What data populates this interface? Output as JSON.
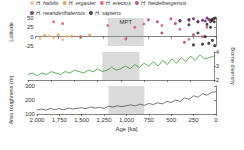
{
  "chart_data": [
    {
      "type": "scatter",
      "ylabel": "Latitude",
      "legend": "top",
      "grid": false,
      "tick_labels": "y",
      "xlim": [
        2000,
        0
      ],
      "xticks": [
        2000,
        1750,
        1500,
        1250,
        1000,
        750,
        500,
        250,
        0
      ],
      "ylim": [
        -25,
        50
      ],
      "yticks": [
        -25,
        0,
        25,
        50
      ],
      "band": [
        1200,
        800
      ],
      "band_label": "MPT",
      "series": [
        {
          "name": "H. habilis",
          "color": "#f2b880",
          "values": [
            [
              1950,
              -5
            ],
            [
              1850,
              2
            ],
            [
              1800,
              -3
            ],
            [
              1700,
              -8
            ],
            [
              1650,
              1
            ]
          ]
        },
        {
          "name": "H. ergaster",
          "color": "#e8923a",
          "values": [
            [
              1900,
              3
            ],
            [
              1750,
              5
            ],
            [
              1600,
              1
            ],
            [
              1500,
              -2
            ],
            [
              1400,
              4
            ]
          ]
        },
        {
          "name": "H. erectus",
          "color": "#d9536f",
          "values": [
            [
              1800,
              40
            ],
            [
              1700,
              35
            ],
            [
              1500,
              0
            ],
            [
              1200,
              30
            ],
            [
              1000,
              -6
            ],
            [
              900,
              25
            ],
            [
              800,
              34
            ],
            [
              600,
              30
            ],
            [
              400,
              20
            ],
            [
              300,
              -7
            ],
            [
              150,
              0
            ],
            [
              100,
              25
            ]
          ]
        },
        {
          "name": "H. heidelbergensis",
          "color": "#b0306e",
          "values": [
            [
              750,
              45
            ],
            [
              650,
              40
            ],
            [
              600,
              10
            ],
            [
              500,
              48
            ],
            [
              450,
              35
            ],
            [
              400,
              42
            ],
            [
              350,
              -15
            ],
            [
              300,
              45
            ],
            [
              250,
              5
            ],
            [
              200,
              40
            ]
          ]
        },
        {
          "name": "H. neanderthalensis",
          "color": "#5b1a5e",
          "values": [
            [
              400,
              43
            ],
            [
              300,
              45
            ],
            [
              250,
              48
            ],
            [
              200,
              40
            ],
            [
              150,
              44
            ],
            [
              120,
              42
            ],
            [
              100,
              50
            ],
            [
              80,
              46
            ],
            [
              60,
              40
            ],
            [
              45,
              44
            ]
          ]
        },
        {
          "name": "H. sapiens",
          "color": "#1a1a1a",
          "values": [
            [
              300,
              32
            ],
            [
              250,
              -22
            ],
            [
              200,
              10
            ],
            [
              150,
              -20
            ],
            [
              120,
              0
            ],
            [
              100,
              33
            ],
            [
              80,
              -18
            ],
            [
              60,
              25
            ],
            [
              50,
              45
            ],
            [
              40,
              -10
            ],
            [
              30,
              48
            ],
            [
              20,
              40
            ],
            [
              15,
              -24
            ],
            [
              10,
              50
            ]
          ]
        }
      ]
    },
    {
      "type": "line",
      "ylabel": "Biome diversity",
      "axis": "y2",
      "grid": false,
      "tick_labels": "y",
      "xlim": [
        2000,
        0
      ],
      "xticks": [
        2000,
        1750,
        1500,
        1250,
        1000,
        750,
        500,
        250,
        0
      ],
      "y2lim": [
        2,
        4
      ],
      "y2ticks": [
        2,
        3,
        4
      ],
      "band": [
        1200,
        800
      ],
      "x": [
        2000,
        1950,
        1900,
        1850,
        1800,
        1750,
        1700,
        1650,
        1600,
        1550,
        1500,
        1450,
        1400,
        1350,
        1300,
        1250,
        1200,
        1150,
        1100,
        1050,
        1000,
        950,
        900,
        850,
        800,
        750,
        700,
        650,
        600,
        550,
        500,
        450,
        400,
        350,
        300,
        250,
        200,
        150,
        100,
        50,
        0
      ],
      "series": [
        {
          "color": "#3a9a3a",
          "values": [
            2.4,
            2.5,
            2.3,
            2.5,
            2.4,
            2.6,
            2.5,
            2.4,
            2.6,
            2.5,
            2.7,
            2.6,
            2.5,
            2.7,
            2.6,
            2.8,
            2.6,
            2.7,
            2.9,
            2.7,
            2.8,
            3.0,
            2.8,
            3.1,
            2.9,
            3.2,
            3.0,
            3.3,
            3.0,
            3.4,
            3.1,
            3.5,
            3.2,
            3.6,
            3.3,
            3.7,
            3.4,
            3.8,
            3.5,
            3.6,
            3.7
          ]
        }
      ]
    },
    {
      "type": "line",
      "ylabel": "Area roughness (m)",
      "xlabel": "Age [ka]",
      "grid": false,
      "xlim": [
        2000,
        0
      ],
      "xticks": [
        2000,
        1750,
        1500,
        1250,
        1000,
        750,
        500,
        250,
        0
      ],
      "ylim": [
        100,
        300
      ],
      "yticks": [
        100,
        200,
        300
      ],
      "band": [
        1200,
        800
      ],
      "x": [
        2000,
        1950,
        1900,
        1850,
        1800,
        1750,
        1700,
        1650,
        1600,
        1550,
        1500,
        1450,
        1400,
        1350,
        1300,
        1250,
        1200,
        1150,
        1100,
        1050,
        1000,
        950,
        900,
        850,
        800,
        750,
        700,
        650,
        600,
        550,
        500,
        450,
        400,
        350,
        300,
        250,
        200,
        150,
        100,
        50,
        0
      ],
      "series": [
        {
          "color": "#555555",
          "values": [
            130,
            135,
            128,
            140,
            132,
            138,
            130,
            142,
            136,
            140,
            145,
            138,
            150,
            142,
            148,
            140,
            155,
            150,
            158,
            152,
            160,
            165,
            158,
            170,
            162,
            175,
            168,
            180,
            172,
            190,
            182,
            200,
            190,
            215,
            205,
            230,
            220,
            245,
            235,
            255,
            260
          ]
        }
      ]
    }
  ]
}
